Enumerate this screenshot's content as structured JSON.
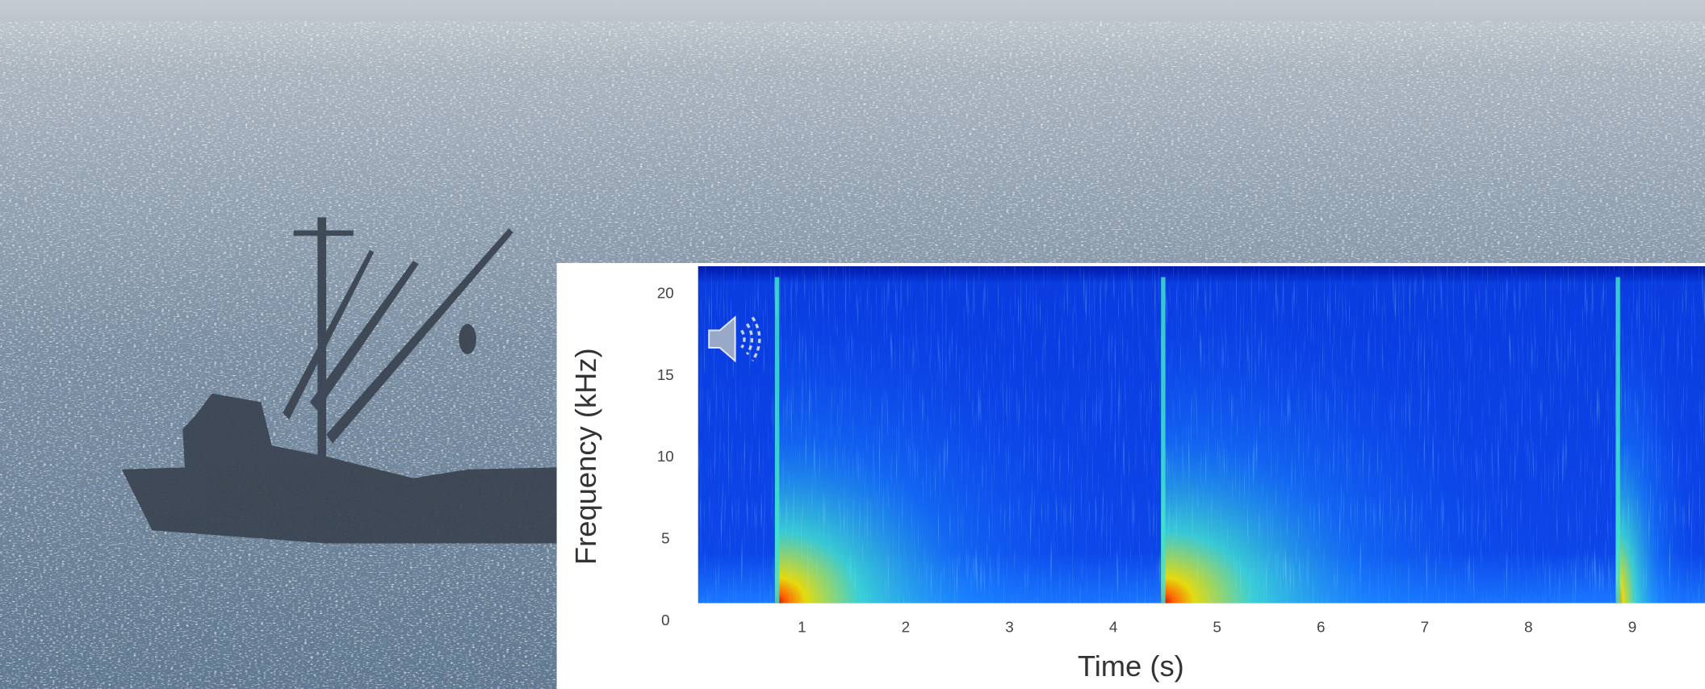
{
  "chart_data": {
    "type": "spectrogram",
    "x_label": "Time (s)",
    "y_label": "Frequency (kHz)",
    "xlim": [
      0,
      9.7
    ],
    "ylim": [
      1.1,
      21.7
    ],
    "xticks": [
      1,
      2,
      3,
      4,
      5,
      6,
      7,
      8,
      9
    ],
    "yticks": [
      0,
      5,
      10,
      15,
      20
    ],
    "pulse_times": [
      0.74,
      4.46,
      8.84
    ],
    "colormap": [
      "#00008b",
      "#0a3cf0",
      "#1a8cff",
      "#40e0d0",
      "#f0e000",
      "#ff6000",
      "#b00000"
    ]
  }
}
